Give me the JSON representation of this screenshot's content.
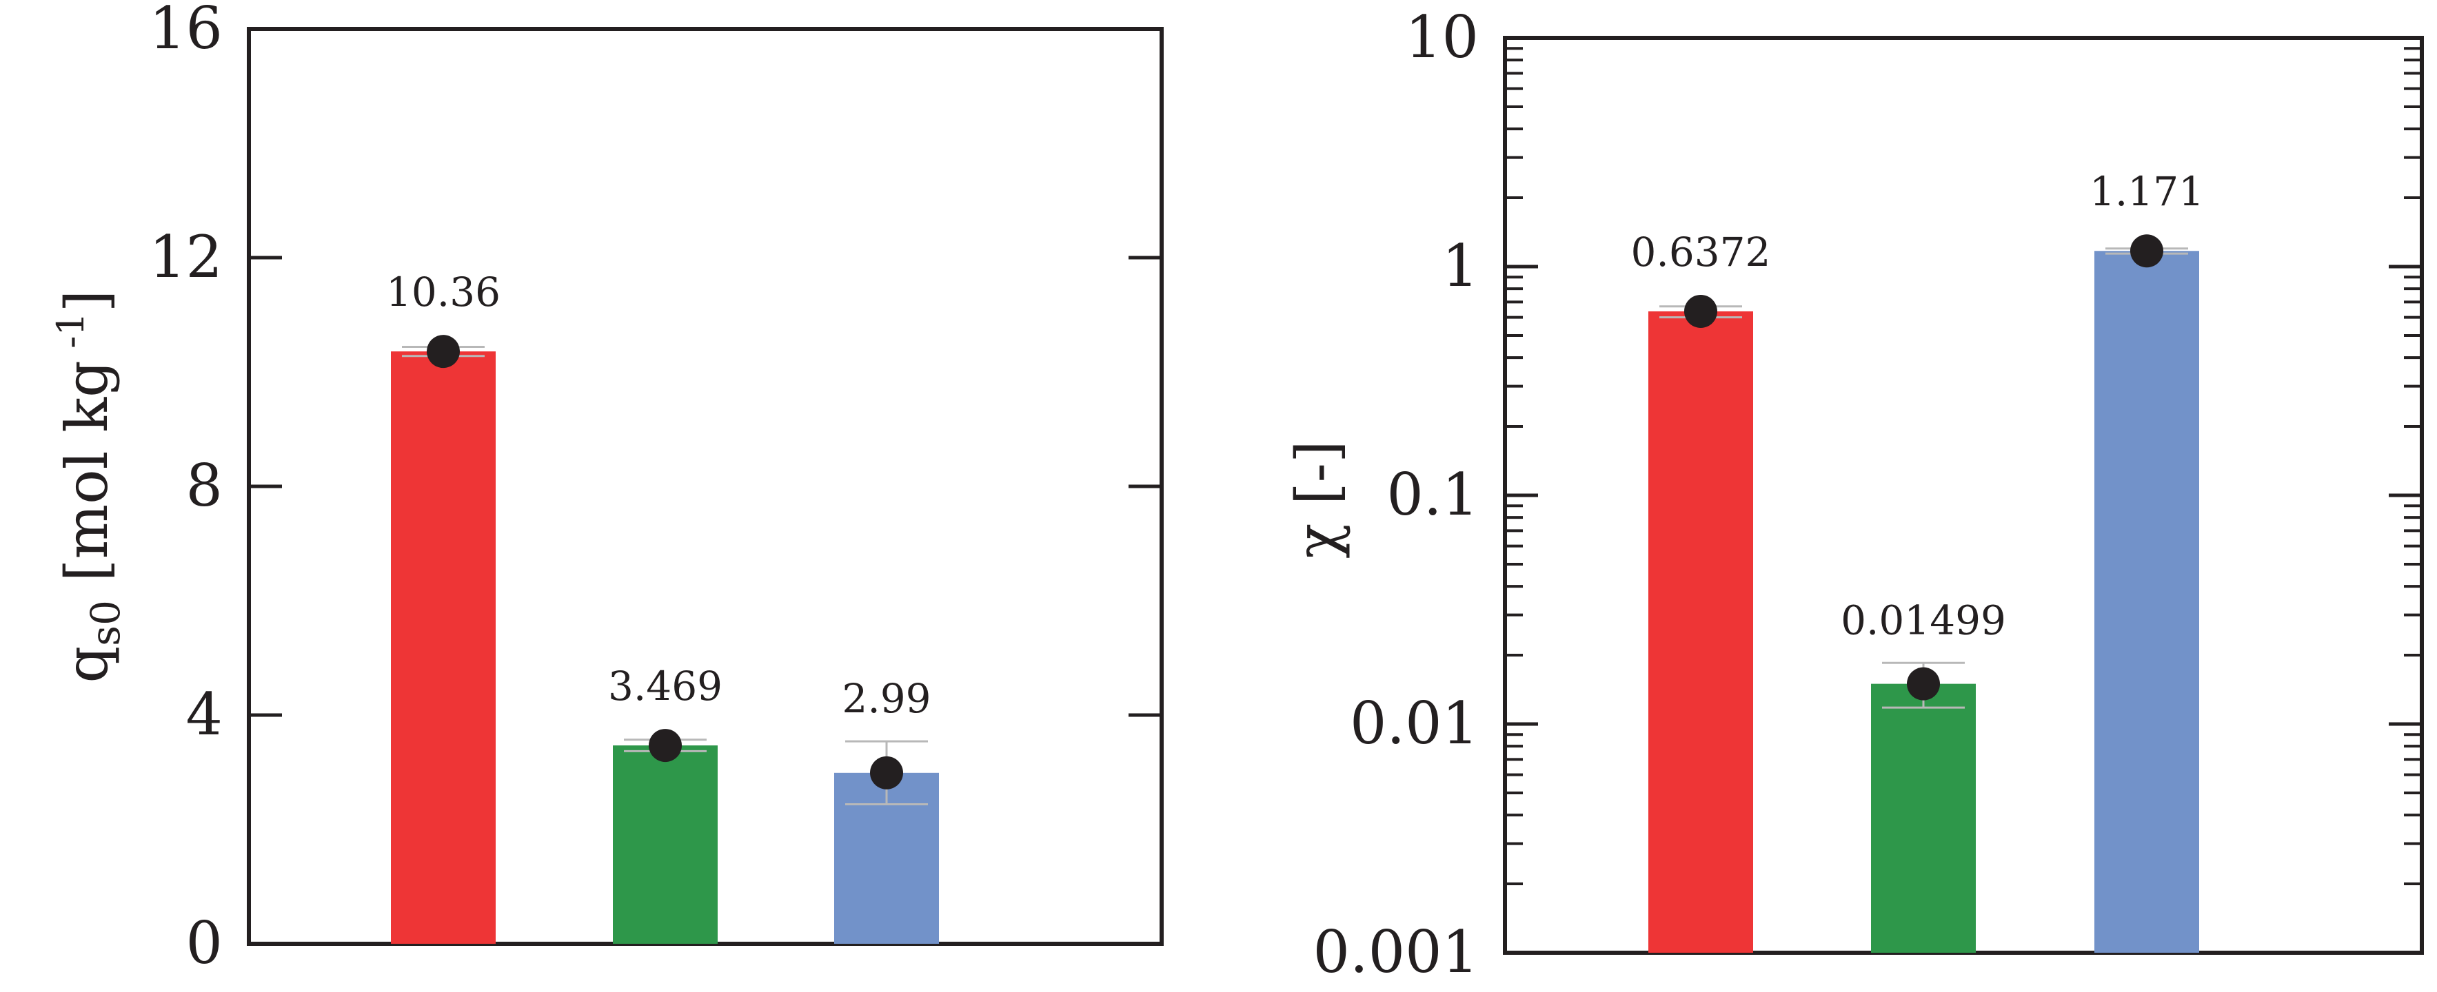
{
  "chart_data": [
    {
      "type": "bar",
      "categories": [
        "",
        "",
        ""
      ],
      "values": [
        10.36,
        3.469,
        2.99
      ],
      "data_labels": [
        "10.36",
        "3.469",
        "2.99"
      ],
      "error": [
        0.08,
        0.1,
        0.55
      ],
      "colors": [
        "#ee3536",
        "#2e974a",
        "#7292c9"
      ],
      "ylabel": {
        "main": "q",
        "sub": "s0",
        "rest": " [mol kg",
        "sup": " -1",
        "close": "]"
      },
      "ylim": [
        0,
        16
      ],
      "y_ticks": [
        0,
        4,
        8,
        12,
        16
      ],
      "y_tick_labels": [
        "0",
        "4",
        "8",
        "12",
        "16"
      ],
      "scale": "linear",
      "grid": false,
      "markers": true
    },
    {
      "type": "bar",
      "categories": [
        "",
        "",
        ""
      ],
      "values": [
        0.6372,
        0.01499,
        1.171
      ],
      "data_labels": [
        "0.6372",
        "0.01499",
        "1.171"
      ],
      "error_low": [
        0.6,
        0.0118,
        1.14
      ],
      "error_high": [
        0.67,
        0.0185,
        1.2
      ],
      "colors": [
        "#ee3536",
        "#2e974a",
        "#7292c9"
      ],
      "ylabel": "χ [-]",
      "ylim": [
        0.001,
        10
      ],
      "y_ticks": [
        0.001,
        0.01,
        0.1,
        1,
        10
      ],
      "y_tick_labels": [
        "0.001",
        "0.01",
        "0.1",
        "1",
        "10"
      ],
      "scale": "log",
      "grid": false,
      "markers": true
    }
  ]
}
